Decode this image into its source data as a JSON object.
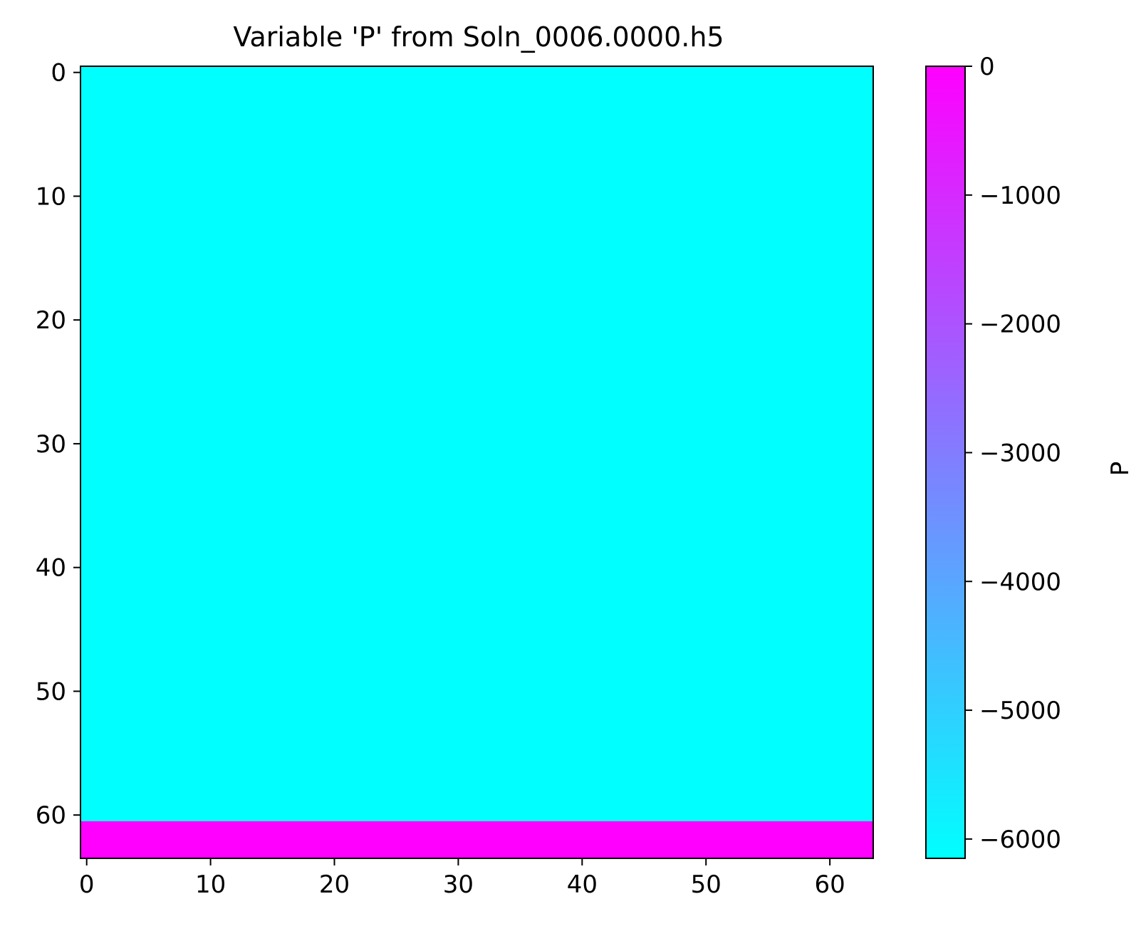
{
  "chart_data": {
    "type": "heatmap",
    "title": "Variable 'P' from Soln_0006.0000.h5",
    "xlabel": "",
    "ylabel": "",
    "xlim": [
      -0.5,
      63.5
    ],
    "ylim": [
      63.5,
      -0.5
    ],
    "x_ticks": [
      0,
      10,
      20,
      30,
      40,
      50,
      60
    ],
    "x_tick_labels": [
      "0",
      "10",
      "20",
      "30",
      "40",
      "50",
      "60"
    ],
    "y_ticks": [
      0,
      10,
      20,
      30,
      40,
      50,
      60
    ],
    "y_tick_labels": [
      "0",
      "10",
      "20",
      "30",
      "40",
      "50",
      "60"
    ],
    "grid": false,
    "colormap": "cool",
    "colormap_colors": [
      "#00ffff",
      "#ff00ff"
    ],
    "regions": [
      {
        "rows": [
          0,
          60
        ],
        "columns": [
          0,
          63
        ],
        "value": -6150,
        "color": "#00ffff"
      },
      {
        "rows": [
          61,
          63
        ],
        "columns": [
          0,
          63
        ],
        "value": 0,
        "color": "#ff00ff"
      }
    ],
    "colorbar": {
      "label": "P",
      "range": [
        -6150,
        0
      ],
      "ticks": [
        0,
        -1000,
        -2000,
        -3000,
        -4000,
        -5000,
        -6000
      ],
      "tick_labels": [
        "0",
        "−1000",
        "−2000",
        "−3000",
        "−4000",
        "−5000",
        "−6000"
      ]
    }
  }
}
